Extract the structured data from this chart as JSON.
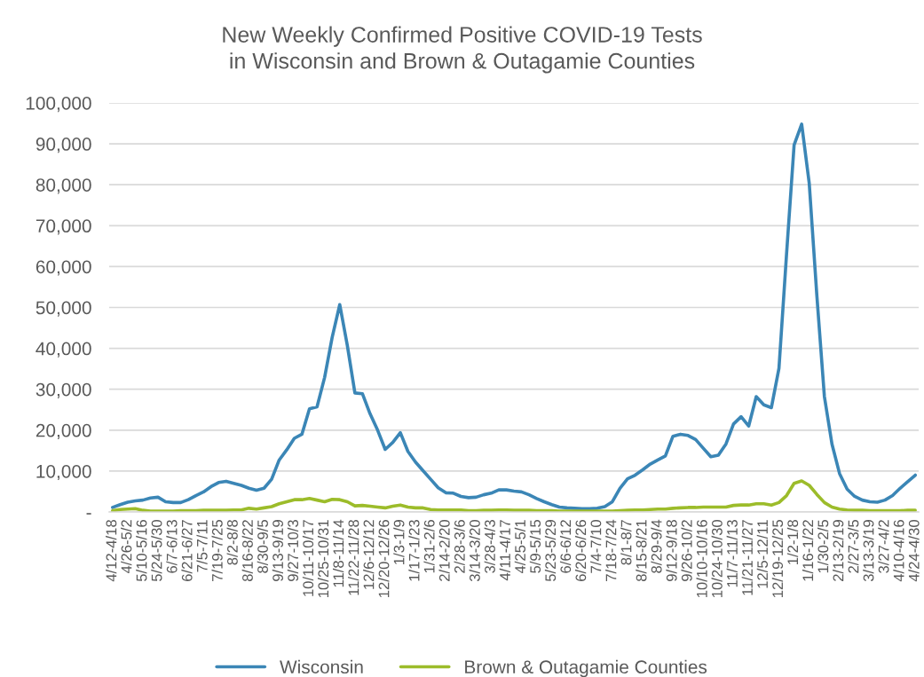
{
  "chart_data": {
    "type": "line",
    "title": "New Weekly Confirmed Positive COVID-19 Tests\nin Wisconsin and Brown & Outagamie Counties",
    "categories": [
      "4/12-4/18",
      null,
      "4/26-5/2",
      null,
      "5/10-5/16",
      null,
      "5/24-5/30",
      null,
      "6/7-6/13",
      null,
      "6/21-6/27",
      null,
      "7/5-7/11",
      null,
      "7/19-7/25",
      null,
      "8/2-8/8",
      null,
      "8/16-8/22",
      null,
      "8/30-9/5",
      null,
      "9/13-9/19",
      null,
      "9/27-10/3",
      null,
      "10/11-10/17",
      null,
      "10/25-10/31",
      null,
      "11/8-11/14",
      null,
      "11/22-11/28",
      null,
      "12/6-12/12",
      null,
      "12/20-12/26",
      null,
      "1/3-1/9",
      null,
      "1/17-1/23",
      null,
      "1/31-2/6",
      null,
      "2/14-2/20",
      null,
      "2/28-3/6",
      null,
      "3/14-3/20",
      null,
      "3/28-4/3",
      null,
      "4/11-4/17",
      null,
      "4/25-5/1",
      null,
      "5/9-5/15",
      null,
      "5/23-5/29",
      null,
      "6/6-6/12",
      null,
      "6/20-6/26",
      null,
      "7/4-7/10",
      null,
      "7/18-7/24",
      null,
      "8/1-8/7",
      null,
      "8/15-8/21",
      null,
      "8/29-9/4",
      null,
      "9/12-9/18",
      null,
      "9/26-10/2",
      null,
      "10/10-10/16",
      null,
      "10/24-10/30",
      null,
      "11/7-11/13",
      null,
      "11/21-11/27",
      null,
      "12/5-12/11",
      null,
      "12/19-12/25",
      null,
      "1/2-1/8",
      null,
      "1/16-1/22",
      null,
      "1/30-2/5",
      null,
      "2/13-2/19",
      null,
      "2/27-3/5",
      null,
      "3/13-3/19",
      null,
      "3/27-4/2",
      null,
      "4/10-4/16",
      null,
      "4/24-4/30"
    ],
    "series": [
      {
        "name": "Wisconsin",
        "color": "#3b86b6",
        "values": [
          1100,
          1800,
          2400,
          2700,
          2900,
          3400,
          3600,
          2500,
          2300,
          2300,
          3000,
          4000,
          4900,
          6200,
          7200,
          7500,
          7000,
          6500,
          5800,
          5300,
          5800,
          8000,
          12700,
          15200,
          18000,
          19000,
          25200,
          25700,
          32900,
          42700,
          50700,
          40700,
          29100,
          28900,
          24000,
          20000,
          15300,
          17000,
          19400,
          14800,
          12200,
          10100,
          8000,
          5900,
          4700,
          4600,
          3800,
          3500,
          3600,
          4200,
          4600,
          5400,
          5400,
          5100,
          4900,
          4200,
          3300,
          2500,
          1800,
          1200,
          1000,
          900,
          800,
          800,
          900,
          1300,
          2500,
          5800,
          8100,
          9000,
          10300,
          11700,
          12700,
          13700,
          18500,
          19000,
          18700,
          17700,
          15600,
          13500,
          13900,
          16600,
          21500,
          23300,
          21000,
          28200,
          26200,
          25500,
          35100,
          63000,
          89700,
          94800,
          80300,
          53000,
          28200,
          16600,
          9400,
          5600,
          3800,
          2900,
          2500,
          2400,
          2900,
          4000,
          5800,
          7400,
          9000
        ]
      },
      {
        "name": "Brown & Outagamie Counties",
        "color": "#9cbc2a",
        "values": [
          300,
          600,
          700,
          800,
          400,
          200,
          200,
          200,
          200,
          300,
          300,
          300,
          400,
          400,
          400,
          400,
          500,
          500,
          900,
          700,
          1000,
          1300,
          2000,
          2500,
          3000,
          3000,
          3300,
          2900,
          2500,
          3100,
          3000,
          2500,
          1500,
          1600,
          1400,
          1200,
          1000,
          1400,
          1700,
          1200,
          1000,
          1000,
          600,
          500,
          500,
          500,
          500,
          300,
          300,
          400,
          400,
          500,
          500,
          400,
          400,
          400,
          300,
          300,
          300,
          200,
          200,
          200,
          200,
          200,
          200,
          200,
          200,
          300,
          400,
          500,
          500,
          600,
          700,
          700,
          900,
          1000,
          1100,
          1100,
          1200,
          1200,
          1200,
          1200,
          1600,
          1700,
          1700,
          2000,
          2000,
          1700,
          2300,
          4000,
          7000,
          7600,
          6500,
          4300,
          2300,
          1200,
          700,
          500,
          400,
          400,
          300,
          300,
          300,
          300,
          300,
          400,
          400
        ]
      }
    ],
    "ylim": [
      0,
      100000
    ],
    "yticks": [
      {
        "value": 0,
        "label": "-"
      },
      {
        "value": 10000,
        "label": "10,000"
      },
      {
        "value": 20000,
        "label": "20,000"
      },
      {
        "value": 30000,
        "label": "30,000"
      },
      {
        "value": 40000,
        "label": "40,000"
      },
      {
        "value": 50000,
        "label": "50,000"
      },
      {
        "value": 60000,
        "label": "60,000"
      },
      {
        "value": 70000,
        "label": "70,000"
      },
      {
        "value": 80000,
        "label": "80,000"
      },
      {
        "value": 90000,
        "label": "90,000"
      },
      {
        "value": 100000,
        "label": "100,000"
      }
    ],
    "grid": "y",
    "legend": "bottom",
    "line_style": "solid"
  }
}
